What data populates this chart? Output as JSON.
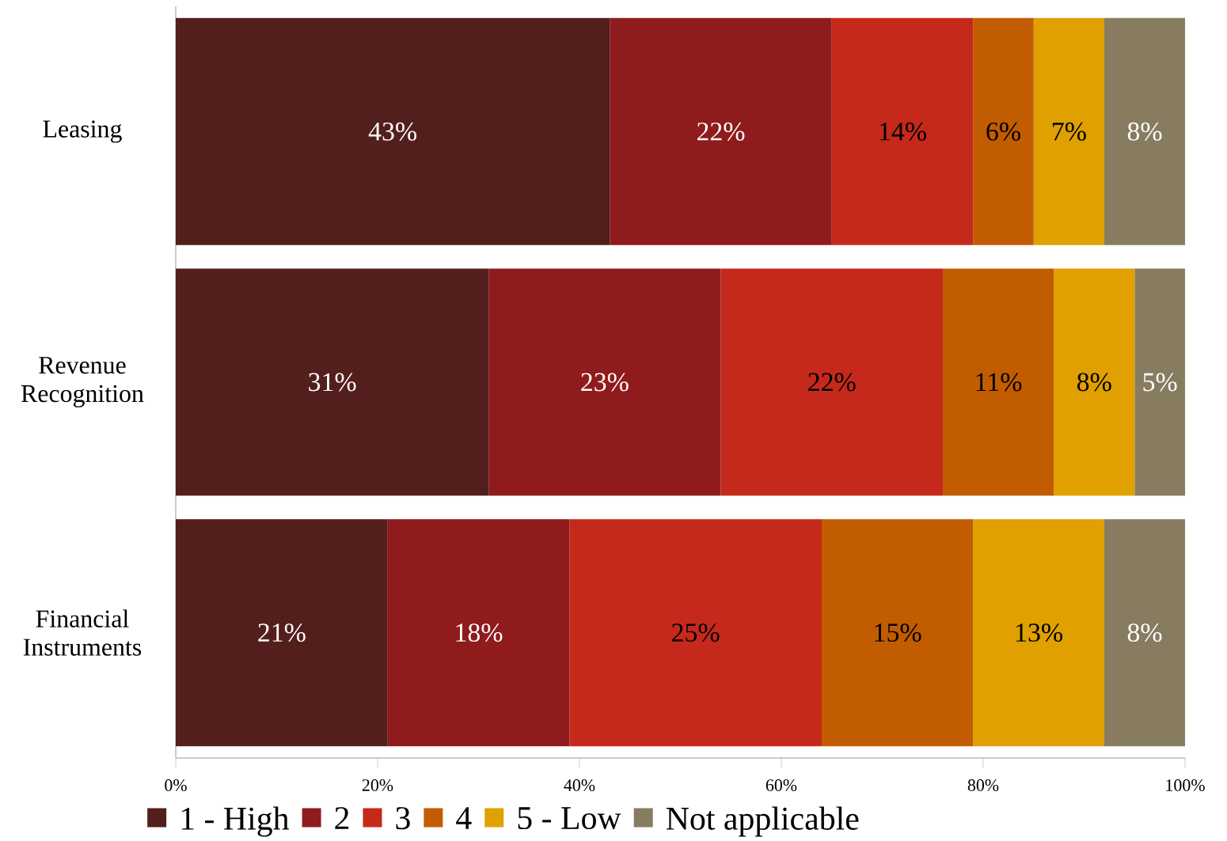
{
  "chart_data": {
    "type": "bar",
    "orientation": "horizontal",
    "stacked": true,
    "categories": [
      "Leasing",
      "Revenue Recognition",
      "Financial Instruments"
    ],
    "series": [
      {
        "name": "1 - High",
        "color": "#531f1d",
        "values": [
          43,
          31,
          21
        ],
        "value_labels": [
          "43%",
          "31%",
          "21%"
        ]
      },
      {
        "name": "2",
        "color": "#8f1b1d",
        "values": [
          22,
          23,
          18
        ],
        "value_labels": [
          "22%",
          "23%",
          "18%"
        ]
      },
      {
        "name": "3",
        "color": "#c5291b",
        "values": [
          14,
          22,
          25
        ],
        "value_labels": [
          "14%",
          "22%",
          "25%"
        ]
      },
      {
        "name": "4",
        "color": "#c25c00",
        "values": [
          6,
          11,
          15
        ],
        "value_labels": [
          "6%",
          "11%",
          "15%"
        ]
      },
      {
        "name": "5 - Low",
        "color": "#e0a000",
        "values": [
          7,
          8,
          13
        ],
        "value_labels": [
          "7%",
          "8%",
          "13%"
        ]
      },
      {
        "name": "Not applicable",
        "color": "#877c60",
        "values": [
          8,
          5,
          8
        ],
        "value_labels": [
          "8%",
          "5%",
          "8%"
        ]
      }
    ],
    "xlim": [
      0,
      100
    ],
    "xticks": [
      {
        "value": 0,
        "label": "0%"
      },
      {
        "value": 20,
        "label": "20%"
      },
      {
        "value": 40,
        "label": "40%"
      },
      {
        "value": 60,
        "label": "60%"
      },
      {
        "value": 80,
        "label": "80%"
      },
      {
        "value": 100,
        "label": "100%"
      }
    ],
    "grid": false,
    "legend": "bottom"
  }
}
